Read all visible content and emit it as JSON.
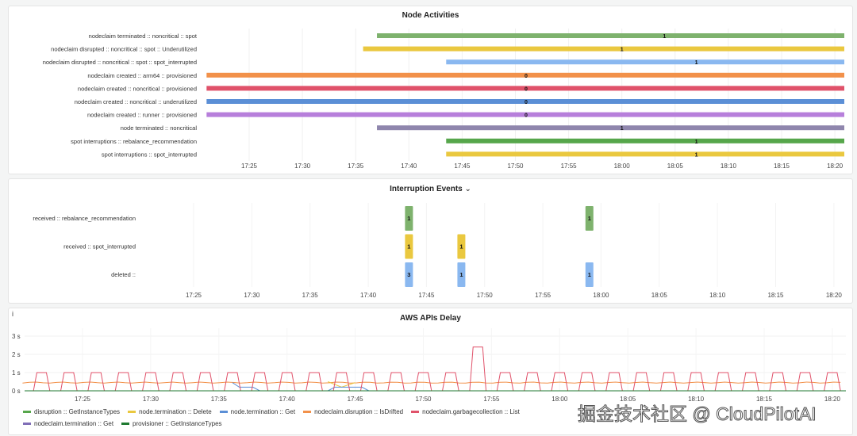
{
  "panels": {
    "node_activities": {
      "title": "Node Activities"
    },
    "interruption_events": {
      "title": "Interruption Events",
      "chevron": "⌄"
    },
    "aws_api_delay": {
      "title": "AWS APIs Delay",
      "info": "i"
    }
  },
  "watermark": "掘金技术社区 @ CloudPilotAI",
  "chart_data": [
    {
      "type": "timeline",
      "title": "Node Activities",
      "xticks": [
        "17:25",
        "17:30",
        "17:35",
        "17:40",
        "17:45",
        "17:50",
        "17:55",
        "18:00",
        "18:05",
        "18:10",
        "18:15",
        "18:20"
      ],
      "xrange_min": [
        -4,
        56
      ],
      "rows": [
        {
          "label": "nodeclaim terminated :: noncritical :: spot",
          "start": 12,
          "value": "1",
          "color": "#7eb26d",
          "vx": 39
        },
        {
          "label": "nodeclaim disrupted :: noncritical :: spot :: Underutilized",
          "start": 10.7,
          "value": "1",
          "color": "#eac83f",
          "vx": 35
        },
        {
          "label": "nodeclaim disrupted :: noncritical :: spot :: spot_interrupted",
          "start": 18.5,
          "value": "1",
          "color": "#8ab8f0",
          "vx": 42
        },
        {
          "label": "nodeclaim created :: arm64 :: provisioned",
          "start": -4,
          "value": "0",
          "color": "#f2914a",
          "vx": 26
        },
        {
          "label": "nodeclaim created :: noncritical :: provisioned",
          "start": -4,
          "value": "0",
          "color": "#e0526a",
          "vx": 26
        },
        {
          "label": "nodeclaim created :: noncritical :: underutilized",
          "start": -4,
          "value": "0",
          "color": "#5b8fd6",
          "vx": 26
        },
        {
          "label": "nodeclaim created :: runner :: provisioned",
          "start": -4,
          "value": "0",
          "color": "#b77fdb",
          "vx": 26
        },
        {
          "label": "node terminated :: noncritical",
          "start": 12,
          "value": "1",
          "color": "#8f86ad",
          "vx": 35
        },
        {
          "label": "spot interruptions :: rebalance_recommendation",
          "start": 18.5,
          "value": "1",
          "color": "#56a64b",
          "vx": 42
        },
        {
          "label": "spot interruptions :: spot_interrupted",
          "start": 18.5,
          "value": "1",
          "color": "#eac83f",
          "vx": 42
        }
      ]
    },
    {
      "type": "heatmap",
      "title": "Interruption Events",
      "xticks": [
        "17:25",
        "17:30",
        "17:35",
        "17:40",
        "17:45",
        "17:50",
        "17:55",
        "18:00",
        "18:05",
        "18:10",
        "18:15",
        "18:20"
      ],
      "rows": [
        {
          "label": "received :: rebalance_recommendation",
          "color": "#7eb26d",
          "cells": [
            {
              "t": 18.5,
              "v": "1"
            },
            {
              "t": 34,
              "v": "1"
            }
          ]
        },
        {
          "label": "received :: spot_interrupted",
          "color": "#eac83f",
          "cells": [
            {
              "t": 18.5,
              "v": "1"
            },
            {
              "t": 23,
              "v": "1"
            }
          ]
        },
        {
          "label": "deleted ::",
          "color": "#8ab8f0",
          "cells": [
            {
              "t": 18.5,
              "v": "3"
            },
            {
              "t": 23,
              "v": "1"
            },
            {
              "t": 34,
              "v": "1"
            }
          ]
        }
      ]
    },
    {
      "type": "line",
      "title": "AWS APIs Delay",
      "yticks": [
        "0 s",
        "1 s",
        "2 s",
        "3 s"
      ],
      "ylim": [
        0,
        3.2
      ],
      "xticks": [
        "17:25",
        "17:30",
        "17:35",
        "17:40",
        "17:45",
        "17:50",
        "17:55",
        "18:00",
        "18:05",
        "18:10",
        "18:15",
        "18:20"
      ],
      "xrange_min": [
        -4.4,
        56
      ],
      "series": [
        {
          "name": "disruption :: GetInstanceTypes",
          "color": "#56a64b"
        },
        {
          "name": "node.termination :: Delete",
          "color": "#eac83f",
          "points": [
            [
              18,
              0.5
            ],
            [
              19,
              0.2
            ],
            [
              20,
              0.45
            ]
          ]
        },
        {
          "name": "node.termination :: Get",
          "color": "#5b8fd6",
          "points": [
            [
              11,
              0.45
            ],
            [
              11.5,
              0.2
            ],
            [
              12.5,
              0.2
            ],
            [
              13,
              0
            ],
            [
              18,
              0
            ],
            [
              18.5,
              0.2
            ],
            [
              20.5,
              0.2
            ],
            [
              21,
              0
            ]
          ]
        },
        {
          "name": "nodeclaim.disruption :: IsDrifted",
          "color": "#f2914a",
          "baseline": 0.45
        },
        {
          "name": "nodeclaim.garbagecollection :: List",
          "color": "#e0526a",
          "pulse_times": [
            -3,
            -1,
            1,
            3,
            5,
            7,
            9,
            11,
            13,
            15,
            17,
            19,
            21,
            23,
            25,
            27,
            29,
            31,
            33,
            35,
            37,
            39,
            41,
            43,
            45,
            47,
            49,
            51,
            53,
            55
          ],
          "pulse_values": [
            1,
            1,
            1,
            1,
            1,
            1,
            1,
            1,
            1,
            1,
            1,
            1,
            1,
            1,
            1,
            1,
            2.4,
            1,
            1,
            1,
            1,
            1,
            1,
            1,
            1,
            1,
            1,
            1,
            1,
            1
          ]
        },
        {
          "name": "nodeclaim.termination :: Get",
          "color": "#806eb7"
        },
        {
          "name": "provisioner :: GetInstanceTypes",
          "color": "#1f7a30"
        }
      ]
    }
  ]
}
